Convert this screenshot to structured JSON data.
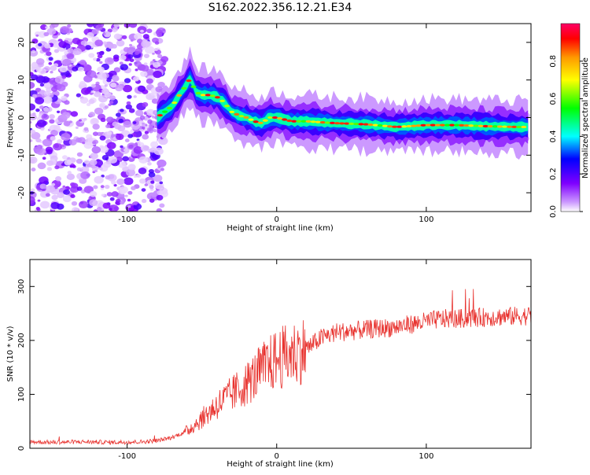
{
  "title": "S162.2022.356.12.21.E34",
  "colors": {
    "snr_line": "#e8322e",
    "axis": "#000000",
    "colormap": [
      "#ffffff",
      "#cc99ff",
      "#7f00ff",
      "#0000ff",
      "#00ffff",
      "#00ff00",
      "#ffff00",
      "#ff9900",
      "#ff0000",
      "#ff0066"
    ]
  },
  "chart_data": [
    {
      "type": "heatmap",
      "xlabel": "Height of straight line (km)",
      "ylabel": "Frequency (Hz)",
      "xlim": [
        -165,
        170
      ],
      "ylim": [
        -25,
        25
      ],
      "xticks": [
        -100,
        0,
        100
      ],
      "yticks": [
        -20,
        -10,
        0,
        10,
        20
      ],
      "xtick_labels": [
        "-100",
        "0",
        "100"
      ],
      "ytick_labels": [
        "-20",
        "-10",
        "0",
        "10",
        "20"
      ],
      "colorbar": {
        "label": "Normalized spectral amplitude",
        "range": [
          0,
          1
        ],
        "ticks": [
          0.0,
          0.2,
          0.4,
          0.6,
          0.8
        ],
        "tick_labels": [
          "0.0",
          "0.2",
          "0.4",
          "0.6",
          "0.8"
        ]
      },
      "ridge": {
        "x": [
          -80,
          -75,
          -70,
          -65,
          -60,
          -57,
          -55,
          -50,
          -45,
          -40,
          -35,
          -30,
          -25,
          -20,
          -15,
          -10,
          -5,
          0,
          10,
          20,
          40,
          60,
          80,
          100,
          120,
          140,
          160,
          168
        ],
        "y": [
          0,
          1.5,
          3,
          6,
          9,
          11,
          7,
          6,
          6,
          5.5,
          4,
          1.5,
          0.5,
          0,
          -1,
          -1.5,
          0,
          0,
          -1,
          -1,
          -1.5,
          -1.8,
          -2.5,
          -2,
          -2,
          -2.3,
          -2.5,
          -2.5
        ]
      }
    },
    {
      "type": "line",
      "xlabel": "Height of straight line (km)",
      "ylabel": "SNR (10 * v/v)",
      "xlim": [
        -165,
        170
      ],
      "ylim": [
        0,
        350
      ],
      "xticks": [
        -100,
        0,
        100
      ],
      "yticks": [
        0,
        100,
        200,
        300
      ],
      "xtick_labels": [
        "-100",
        "0",
        "100"
      ],
      "ytick_labels": [
        "0",
        "100",
        "200",
        "300"
      ],
      "series": [
        {
          "x": [
            -165,
            -150,
            -130,
            -110,
            -90,
            -80,
            -70,
            -60,
            -50,
            -40,
            -30,
            -20,
            -10,
            0,
            10,
            20,
            30,
            40,
            60,
            80,
            90,
            100,
            110,
            120,
            140,
            160,
            170
          ],
          "values": [
            12,
            11,
            12,
            11,
            12,
            14,
            20,
            32,
            55,
            80,
            100,
            120,
            145,
            165,
            175,
            185,
            205,
            215,
            220,
            225,
            230,
            235,
            240,
            240,
            243,
            245,
            246
          ]
        }
      ]
    }
  ]
}
